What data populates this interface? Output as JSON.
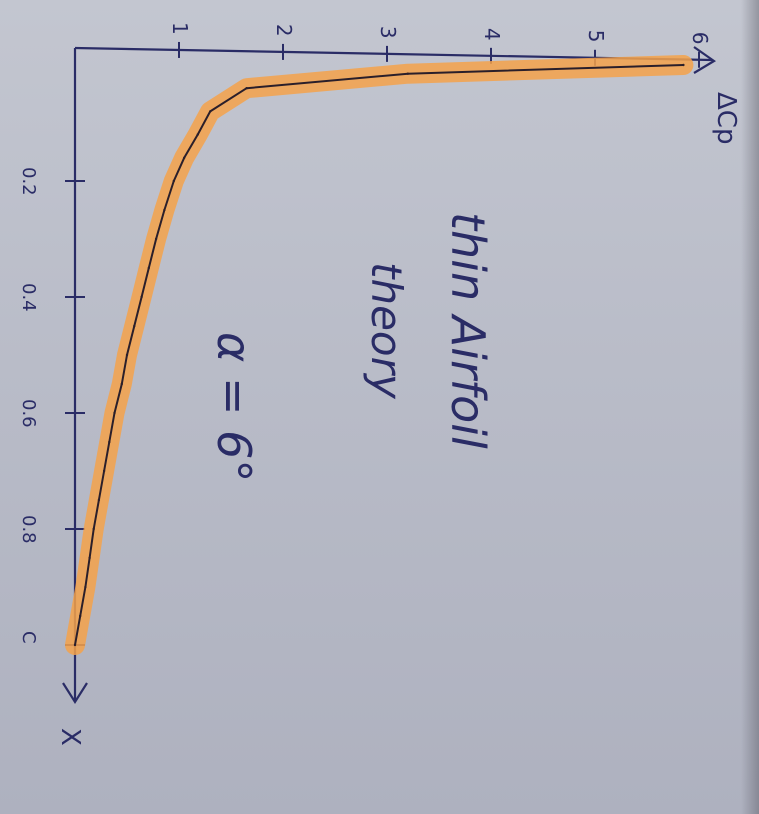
{
  "chart_data": {
    "type": "line",
    "orientation": "rotated-90-clockwise",
    "xlabel": "X",
    "ylabel": "ΔCp",
    "x_ticks": [
      "0.2",
      "0.4",
      "0.6",
      "0.8",
      "C"
    ],
    "y_ticks": [
      "1",
      "2",
      "3",
      "4",
      "5",
      "6"
    ],
    "xlim": [
      0,
      1
    ],
    "ylim": [
      0,
      6
    ],
    "grid": false,
    "annotations": [
      "thin Airfoil",
      "theory",
      "α = 6°"
    ],
    "series": [
      {
        "x": [
          0.0,
          0.015,
          0.04,
          0.08,
          0.12,
          0.16,
          0.2,
          0.25,
          0.3,
          0.35,
          0.4,
          0.45,
          0.5,
          0.55,
          0.6,
          0.65,
          0.7,
          0.75,
          0.8,
          0.85,
          0.9,
          0.95,
          1.0
        ],
        "y": [
          5.85,
          3.2,
          1.65,
          1.3,
          1.18,
          1.05,
          0.95,
          0.86,
          0.78,
          0.71,
          0.64,
          0.57,
          0.5,
          0.45,
          0.38,
          0.33,
          0.28,
          0.23,
          0.18,
          0.14,
          0.1,
          0.05,
          0.0
        ]
      }
    ],
    "colors": {
      "ink": "#2a2c66",
      "curve": "#2b1f2a",
      "highlight": "#f5a24a"
    }
  }
}
